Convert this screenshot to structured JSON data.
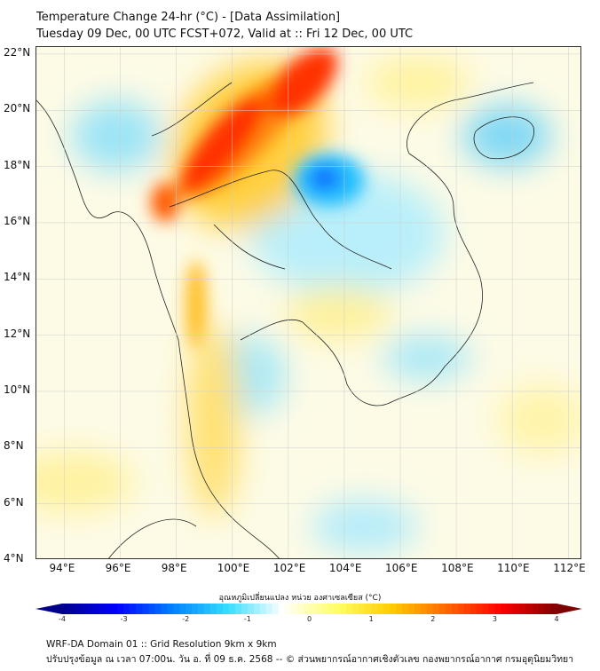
{
  "header": {
    "title": "Temperature Change 24-hr (°C) - [Data Assimilation]",
    "subtitle": "Tuesday 09 Dec, 00 UTC FCST+072, Valid at :: Fri 12 Dec, 00 UTC"
  },
  "map": {
    "lon_labels": [
      "94°E",
      "96°E",
      "98°E",
      "100°E",
      "102°E",
      "104°E",
      "106°E",
      "108°E",
      "110°E",
      "112°E"
    ],
    "lon_values": [
      94,
      96,
      98,
      100,
      102,
      104,
      106,
      108,
      110,
      112
    ],
    "lat_labels": [
      "22°N",
      "20°N",
      "18°N",
      "16°N",
      "14°N",
      "12°N",
      "10°N",
      "8°N",
      "6°N",
      "4°N"
    ],
    "lat_values": [
      22,
      20,
      18,
      16,
      14,
      12,
      10,
      8,
      6,
      4
    ],
    "lon_range": [
      93,
      112.5
    ],
    "lat_range": [
      4,
      22.25
    ]
  },
  "colorbar": {
    "label": "อุณหภูมิเปลี่ยนแปลง หน่วย องศาเซลเซียส (°C)",
    "range": [
      -4,
      4
    ],
    "tick_labels": [
      "-4",
      "-3",
      "-2",
      "-1",
      "0",
      "1",
      "2",
      "3",
      "4"
    ],
    "tick_values": [
      -4,
      -3,
      -2,
      -1,
      0,
      1,
      2,
      3,
      4
    ],
    "colors": [
      "#00008b",
      "#0000ff",
      "#0080ff",
      "#33ddff",
      "#ffffff",
      "#ffff66",
      "#ffcc00",
      "#ff6600",
      "#ff0000",
      "#7f0000"
    ]
  },
  "footer": {
    "line1": "WRF-DA Domain 01 :: Grid Resolution 9km x 9km",
    "line2": "ปรับปรุงข้อมูล ณ เวลา 07:00น. วัน อ. ที่ 09 ธ.ค. 2568 -- © ส่วนพยากรณ์อากาศเชิงตัวเลข กองพยากรณ์อากาศ กรมอุตุนิยมวิทยา"
  }
}
